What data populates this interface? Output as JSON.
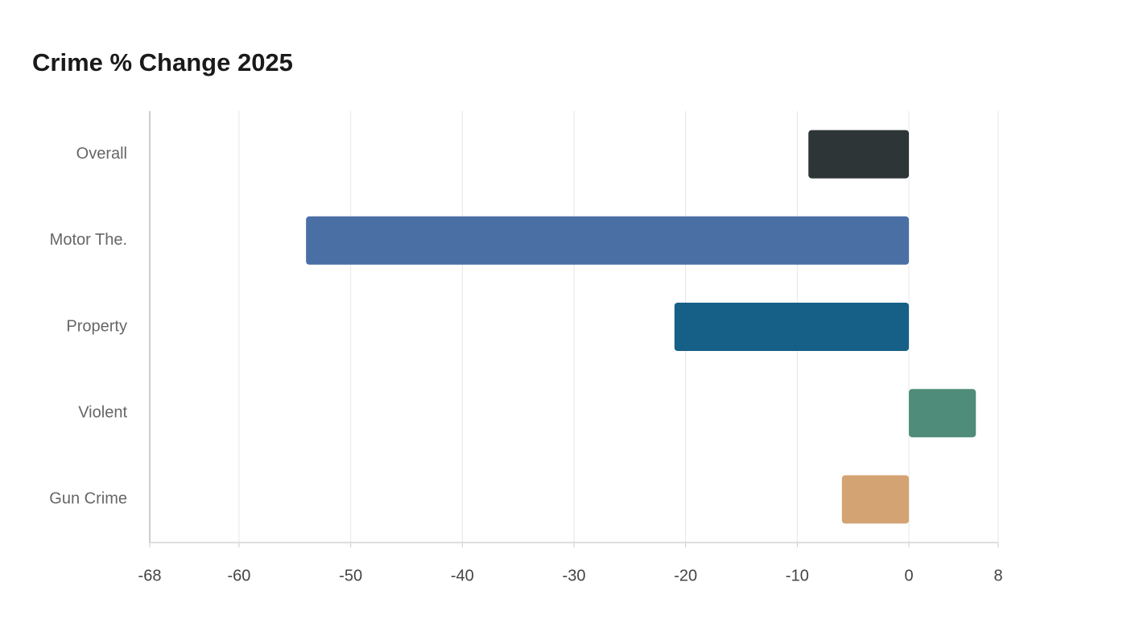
{
  "chart_data": {
    "type": "barh",
    "title": "Crime % Change 2025",
    "categories": [
      "Overall",
      "Motor The.",
      "Property",
      "Violent",
      "Gun Crime"
    ],
    "values": [
      -9,
      -54,
      -21,
      6,
      -6
    ],
    "colors": [
      "#2e3536",
      "#4a6fa5",
      "#166088",
      "#4f8c7a",
      "#d4a373"
    ],
    "xlim": [
      -68,
      8
    ],
    "xticks": [
      -68,
      -60,
      -50,
      -40,
      -30,
      -20,
      -10,
      0,
      8
    ],
    "grid": true
  }
}
